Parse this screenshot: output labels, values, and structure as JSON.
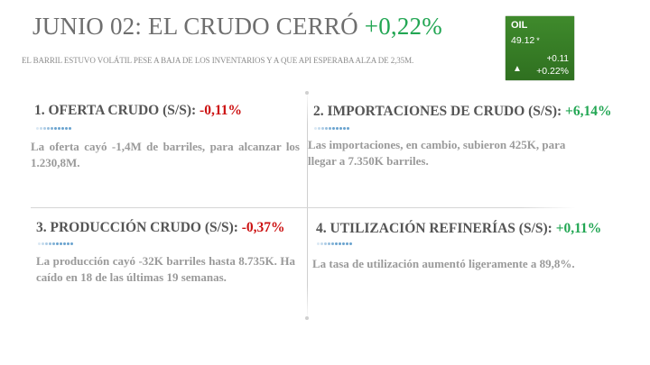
{
  "header": {
    "title_main": "JUNIO 02: EL CRUDO CERRÓ",
    "title_change": "+0,22%",
    "subtitle": "EL BARRIL ESTUVO VOLÁTIL PESE A BAJA DE LOS INVENTARIOS Y A QUE API ESPERABA ALZA DE 2,35M."
  },
  "ticker": {
    "symbol": "OIL",
    "price": "49.12",
    "price_mark": "*",
    "change": "+0.11",
    "arrow": "▲",
    "change_pct": "+0.22%",
    "bg_color": "#3a7f28"
  },
  "panels": [
    {
      "label": "1. OFERTA CRUDO (S/S): ",
      "value": "-0,11%",
      "direction": "negative",
      "text": "La oferta cayó -1,4M de barriles, para alcanzar los 1.230,8M."
    },
    {
      "label": "2. IMPORTACIONES DE CRUDO (S/S): ",
      "value": "+6,14%",
      "direction": "positive",
      "text": "Las importaciones, en cambio, subieron 425K, para llegar a 7.350K barriles."
    },
    {
      "label": "3. PRODUCCIÓN CRUDO (S/S): ",
      "value": "-0,37%",
      "direction": "negative",
      "text": "La producción cayó -32K barriles hasta 8.735K. Ha caído en 18 de las últimas 19 semanas."
    },
    {
      "label": "4. UTILIZACIÓN REFINERÍAS (S/S): ",
      "value": "+0,11%",
      "direction": "positive",
      "text": "La tasa de utilización aumentó ligeramente a 89,8%."
    }
  ],
  "colors": {
    "positive": "#22a653",
    "negative": "#cc1111",
    "accent_dots": "#6aa3cf"
  }
}
